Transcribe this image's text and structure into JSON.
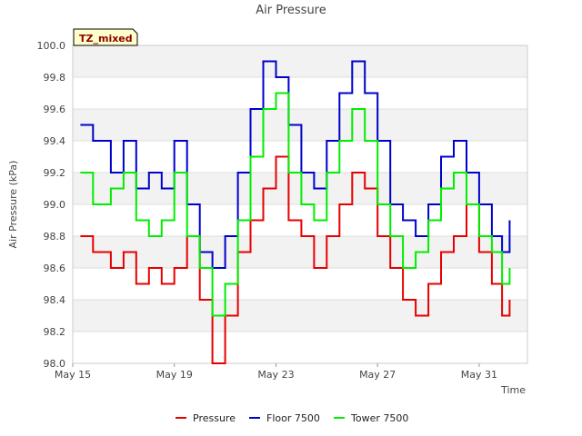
{
  "chart_data": {
    "type": "line",
    "title": "Air Pressure",
    "xlabel": "Time",
    "ylabel": "Air Pressure (kPa)",
    "annotation": "TZ_mixed",
    "xlim": [
      0,
      17.9
    ],
    "ylim": [
      98.0,
      100.0
    ],
    "yticks": [
      98.0,
      98.2,
      98.4,
      98.6,
      98.8,
      99.0,
      99.2,
      99.4,
      99.6,
      99.8,
      100.0
    ],
    "xticks": [
      {
        "label": "May 15",
        "day": 0
      },
      {
        "label": "May 19",
        "day": 4
      },
      {
        "label": "May 23",
        "day": 8
      },
      {
        "label": "May 27",
        "day": 12
      },
      {
        "label": "May 31",
        "day": 16
      }
    ],
    "colors": {
      "Pressure": "#e60000",
      "Floor 7500": "#0000cc",
      "Tower 7500": "#00ee00"
    },
    "series": [
      {
        "name": "Pressure",
        "x": [
          0.3,
          0.8,
          1.5,
          2.0,
          2.5,
          3.0,
          3.5,
          4.0,
          4.5,
          5.0,
          5.5,
          6.0,
          6.5,
          7.0,
          7.5,
          8.0,
          8.5,
          9.0,
          9.5,
          10.0,
          10.5,
          11.0,
          11.5,
          12.0,
          12.5,
          13.0,
          13.5,
          14.0,
          14.5,
          15.0,
          15.5,
          16.0,
          16.5,
          16.9,
          17.2
        ],
        "values": [
          98.8,
          98.7,
          98.6,
          98.7,
          98.5,
          98.6,
          98.5,
          98.6,
          98.8,
          98.4,
          98.0,
          98.3,
          98.7,
          98.9,
          99.1,
          99.3,
          98.9,
          98.8,
          98.6,
          98.8,
          99.0,
          99.2,
          99.1,
          98.8,
          98.6,
          98.4,
          98.3,
          98.5,
          98.7,
          98.8,
          99.0,
          98.7,
          98.5,
          98.3,
          98.4
        ]
      },
      {
        "name": "Floor 7500",
        "x": [
          0.3,
          0.8,
          1.5,
          2.0,
          2.5,
          3.0,
          3.5,
          4.0,
          4.5,
          5.0,
          5.5,
          6.0,
          6.5,
          7.0,
          7.5,
          8.0,
          8.5,
          9.0,
          9.5,
          10.0,
          10.5,
          11.0,
          11.5,
          12.0,
          12.5,
          13.0,
          13.5,
          14.0,
          14.5,
          15.0,
          15.5,
          16.0,
          16.5,
          16.9,
          17.2
        ],
        "values": [
          99.5,
          99.4,
          99.2,
          99.4,
          99.1,
          99.2,
          99.1,
          99.4,
          99.0,
          98.7,
          98.6,
          98.8,
          99.2,
          99.6,
          99.9,
          99.8,
          99.5,
          99.2,
          99.1,
          99.4,
          99.7,
          99.9,
          99.7,
          99.4,
          99.0,
          98.9,
          98.8,
          99.0,
          99.3,
          99.4,
          99.2,
          99.0,
          98.8,
          98.7,
          98.9
        ]
      },
      {
        "name": "Tower 7500",
        "x": [
          0.3,
          0.8,
          1.5,
          2.0,
          2.5,
          3.0,
          3.5,
          4.0,
          4.5,
          5.0,
          5.5,
          6.0,
          6.5,
          7.0,
          7.5,
          8.0,
          8.5,
          9.0,
          9.5,
          10.0,
          10.5,
          11.0,
          11.5,
          12.0,
          12.5,
          13.0,
          13.5,
          14.0,
          14.5,
          15.0,
          15.5,
          16.0,
          16.5,
          16.9,
          17.2
        ],
        "values": [
          99.2,
          99.0,
          99.1,
          99.2,
          98.9,
          98.8,
          98.9,
          99.2,
          98.8,
          98.6,
          98.3,
          98.5,
          98.9,
          99.3,
          99.6,
          99.7,
          99.2,
          99.0,
          98.9,
          99.2,
          99.4,
          99.6,
          99.4,
          99.0,
          98.8,
          98.6,
          98.7,
          98.9,
          99.1,
          99.2,
          99.0,
          98.8,
          98.7,
          98.5,
          98.6
        ]
      }
    ]
  }
}
